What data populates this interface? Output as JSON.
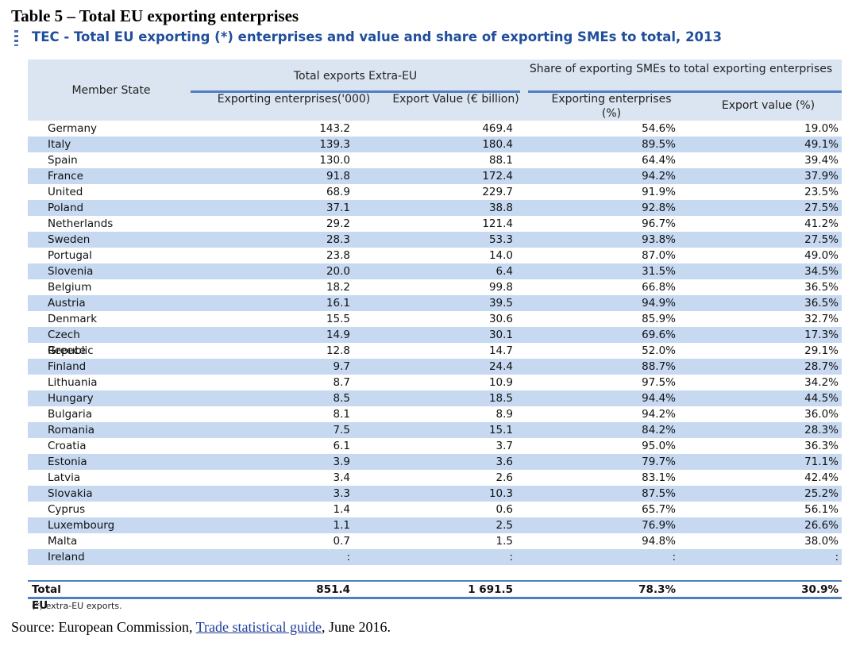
{
  "title": "Table 5 – Total EU exporting enterprises",
  "subtitle": "TEC - Total EU exporting (*) enterprises and value and share of exporting SMEs to total, 2013",
  "table": {
    "header": {
      "member_state": "Member State",
      "group1": "Total exports Extra-EU",
      "group2": "Share of exporting SMEs to total exporting enterprises",
      "columns": [
        "Exporting enterprises('000)",
        "Export Value (€ billion)",
        "Exporting enterprises (%)",
        "Export value (%)"
      ]
    },
    "rows": [
      [
        "Germany",
        "143.2",
        "469.4",
        "54.6%",
        "19.0%"
      ],
      [
        "Italy",
        "139.3",
        "180.4",
        "89.5%",
        "49.1%"
      ],
      [
        "Spain",
        "130.0",
        "88.1",
        "64.4%",
        "39.4%"
      ],
      [
        "France",
        "91.8",
        "172.4",
        "94.2%",
        "37.9%"
      ],
      [
        "United Kingdom",
        "68.9",
        "229.7",
        "91.9%",
        "23.5%"
      ],
      [
        "Poland",
        "37.1",
        "38.8",
        "92.8%",
        "27.5%"
      ],
      [
        "Netherlands",
        "29.2",
        "121.4",
        "96.7%",
        "41.2%"
      ],
      [
        "Sweden",
        "28.3",
        "53.3",
        "93.8%",
        "27.5%"
      ],
      [
        "Portugal",
        "23.8",
        "14.0",
        "87.0%",
        "49.0%"
      ],
      [
        "Slovenia",
        "20.0",
        "6.4",
        "31.5%",
        "34.5%"
      ],
      [
        "Belgium",
        "18.2",
        "99.8",
        "66.8%",
        "36.5%"
      ],
      [
        "Austria",
        "16.1",
        "39.5",
        "94.9%",
        "36.5%"
      ],
      [
        "Denmark",
        "15.5",
        "30.6",
        "85.9%",
        "32.7%"
      ],
      [
        "Czech Republic",
        "14.9",
        "30.1",
        "69.6%",
        "17.3%"
      ],
      [
        "Greece",
        "12.8",
        "14.7",
        "52.0%",
        "29.1%"
      ],
      [
        "Finland",
        "9.7",
        "24.4",
        "88.7%",
        "28.7%"
      ],
      [
        "Lithuania",
        "8.7",
        "10.9",
        "97.5%",
        "34.2%"
      ],
      [
        "Hungary",
        "8.5",
        "18.5",
        "94.4%",
        "44.5%"
      ],
      [
        "Bulgaria",
        "8.1",
        "8.9",
        "94.2%",
        "36.0%"
      ],
      [
        "Romania",
        "7.5",
        "15.1",
        "84.2%",
        "28.3%"
      ],
      [
        "Croatia",
        "6.1",
        "3.7",
        "95.0%",
        "36.3%"
      ],
      [
        "Estonia",
        "3.9",
        "3.6",
        "79.7%",
        "71.1%"
      ],
      [
        "Latvia",
        "3.4",
        "2.6",
        "83.1%",
        "42.4%"
      ],
      [
        "Slovakia",
        "3.3",
        "10.3",
        "87.5%",
        "25.2%"
      ],
      [
        "Cyprus",
        "1.4",
        "0.6",
        "65.7%",
        "56.1%"
      ],
      [
        "Luxembourg",
        "1.1",
        "2.5",
        "76.9%",
        "26.6%"
      ],
      [
        "Malta",
        "0.7",
        "1.5",
        "94.8%",
        "38.0%"
      ],
      [
        "Ireland",
        ":",
        ":",
        ":",
        ":"
      ]
    ],
    "total": [
      "Total EU",
      "851.4",
      "1 691.5",
      "78.3%",
      "30.9%"
    ]
  },
  "footnote": "(*) extra-EU exports.",
  "source": {
    "prefix": "Source: European Commission, ",
    "link": "Trade statistical guide",
    "suffix": ", June 2016."
  }
}
